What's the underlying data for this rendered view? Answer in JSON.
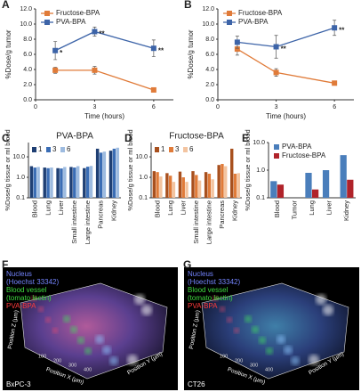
{
  "chart_data": [
    {
      "type": "line",
      "label": "A",
      "xlabel": "Time (hours)",
      "ylabel": "%Dose/g tumor",
      "xlim": [
        0,
        7
      ],
      "xticks": [
        0,
        3,
        6
      ],
      "ylim": [
        0,
        12
      ],
      "yticks": [
        {
          "value": 0,
          "label": "0.0"
        },
        {
          "value": 2,
          "label": "2.0"
        },
        {
          "value": 4,
          "label": "4.0"
        },
        {
          "value": 6,
          "label": "6.0"
        },
        {
          "value": 8,
          "label": "8.0"
        },
        {
          "value": 10,
          "label": "10.0"
        },
        {
          "value": 12,
          "label": "12.0"
        }
      ],
      "x": [
        1,
        3,
        6
      ],
      "series": [
        {
          "name": "Fructose-BPA",
          "color": "#e07b39",
          "values": [
            3.9,
            3.9,
            1.3
          ],
          "errors": [
            0.4,
            0.5,
            0.2
          ]
        },
        {
          "name": "PVA-BPA",
          "color": "#3d64a8",
          "values": [
            6.5,
            9.0,
            6.8
          ],
          "errors": [
            1.2,
            0.6,
            1.1
          ],
          "annotations": [
            "*",
            "**",
            "**"
          ]
        }
      ]
    },
    {
      "type": "line",
      "label": "B",
      "xlabel": "Time (hours)",
      "ylabel": "%Dose/g tumor",
      "xlim": [
        0,
        7
      ],
      "xticks": [
        0,
        3,
        6
      ],
      "ylim": [
        0,
        12
      ],
      "yticks": [
        {
          "value": 0,
          "label": "0.0"
        },
        {
          "value": 2,
          "label": "2.0"
        },
        {
          "value": 4,
          "label": "4.0"
        },
        {
          "value": 6,
          "label": "6.0"
        },
        {
          "value": 8,
          "label": "8.0"
        },
        {
          "value": 10,
          "label": "10.0"
        },
        {
          "value": 12,
          "label": "12.0"
        }
      ],
      "x": [
        1,
        3,
        6
      ],
      "series": [
        {
          "name": "Fructose-BPA",
          "color": "#e07b39",
          "values": [
            6.7,
            3.6,
            2.2
          ],
          "errors": [
            0.8,
            0.5,
            0.2
          ]
        },
        {
          "name": "PVA-BPA",
          "color": "#3d64a8",
          "values": [
            7.6,
            7.0,
            9.5
          ],
          "errors": [
            0.8,
            1.5,
            1.0
          ],
          "annotations": [
            null,
            "**",
            "**"
          ]
        }
      ]
    },
    {
      "type": "bar",
      "label": "C",
      "title": "PVA-BPA",
      "ylabel": "%Dose/g tissue or ml blood",
      "log": true,
      "legend": "horizontal",
      "ylim": [
        0.1,
        50
      ],
      "yticks": [
        0.1,
        {
          "value": 1,
          "label": "1.0"
        },
        {
          "value": 10,
          "label": "10.0"
        }
      ],
      "categories": [
        "Blood",
        "Lung",
        "Liver",
        "Small intestine",
        "Large intestine",
        "Pancreas",
        "Kidney"
      ],
      "series": [
        {
          "name": "1",
          "color": "#1f3f73",
          "values": [
            3.5,
            3.0,
            2.8,
            3.2,
            2.8,
            25,
            20
          ]
        },
        {
          "name": "3",
          "color": "#3a6db5",
          "values": [
            3.0,
            2.8,
            2.7,
            3.0,
            3.3,
            16,
            25
          ]
        },
        {
          "name": "6",
          "color": "#9dbbe0",
          "values": [
            3.2,
            3.0,
            3.2,
            3.5,
            3.6,
            18,
            28
          ]
        }
      ]
    },
    {
      "type": "bar",
      "label": "D",
      "title": "Fructose-BPA",
      "ylabel": "%Dose/g tissue or ml blood",
      "log": true,
      "legend": "horizontal",
      "ylim": [
        0.1,
        50
      ],
      "yticks": [
        0.1,
        {
          "value": 1,
          "label": "1.0"
        },
        {
          "value": 10,
          "label": "10.0"
        }
      ],
      "categories": [
        "Blood",
        "Lung",
        "Liver",
        "Small intestine",
        "Large intestine",
        "Pancreas",
        "Kidney"
      ],
      "series": [
        {
          "name": "1",
          "color": "#a8501e",
          "values": [
            2.0,
            1.6,
            1.9,
            2.0,
            1.8,
            4.0,
            25
          ]
        },
        {
          "name": "3",
          "color": "#e07b39",
          "values": [
            1.8,
            1.2,
            1.0,
            1.3,
            1.5,
            4.5,
            1.5
          ]
        },
        {
          "name": "6",
          "color": "#f3c4a0",
          "values": [
            1.1,
            0.6,
            0.6,
            0.7,
            0.8,
            3.5,
            1.6
          ]
        }
      ]
    },
    {
      "type": "bar",
      "label": "E",
      "ylabel": "%Dose/g tissue or ml blood",
      "log": true,
      "legend": "vertical",
      "ylim": [
        0.1,
        10
      ],
      "yticks": [
        0.1,
        {
          "value": 1,
          "label": "1.0"
        },
        {
          "value": 10,
          "label": "10.0"
        }
      ],
      "categories": [
        "Blood",
        "Tumor",
        "Lung",
        "Liver",
        "Kidney"
      ],
      "series": [
        {
          "name": "PVA-BPA",
          "color": "#4a7ebb",
          "values": [
            0.4,
            null,
            0.8,
            1.0,
            3.5
          ]
        },
        {
          "name": "Fructose-BPA",
          "color": "#b0232a",
          "values": [
            0.3,
            null,
            0.2,
            null,
            0.45
          ]
        }
      ]
    }
  ],
  "images": [
    {
      "label": "F",
      "cell_line": "BxPC-3",
      "channels": [
        {
          "lines": [
            "Nucleus",
            "(Hoechst 33342)"
          ],
          "color": "#7484ff"
        },
        {
          "lines": [
            "Blood vessel",
            "(tomato lectin)"
          ],
          "color": "#3fdc3f"
        },
        {
          "lines": [
            "PVA-BPA"
          ],
          "color": "#ff3b3b"
        }
      ],
      "axes": [
        "Position X (µm)",
        "Position Y (µm)",
        "Position Z (µm)"
      ],
      "ticks": [
        "100",
        "200",
        "300",
        "400"
      ]
    },
    {
      "label": "G",
      "cell_line": "CT26",
      "channels": [
        {
          "lines": [
            "Nucleus",
            "(Hoechst 33342)"
          ],
          "color": "#7484ff"
        },
        {
          "lines": [
            "Blood vessel",
            "(tomato lectin)"
          ],
          "color": "#3fdc3f"
        },
        {
          "lines": [
            "PVA-BPA"
          ],
          "color": "#ff3b3b"
        }
      ],
      "axes": [
        "Position X (µm)",
        "Position Y (µm)",
        "Position Z (µm)"
      ],
      "ticks": [
        "100",
        "200",
        "300",
        "400"
      ]
    }
  ]
}
